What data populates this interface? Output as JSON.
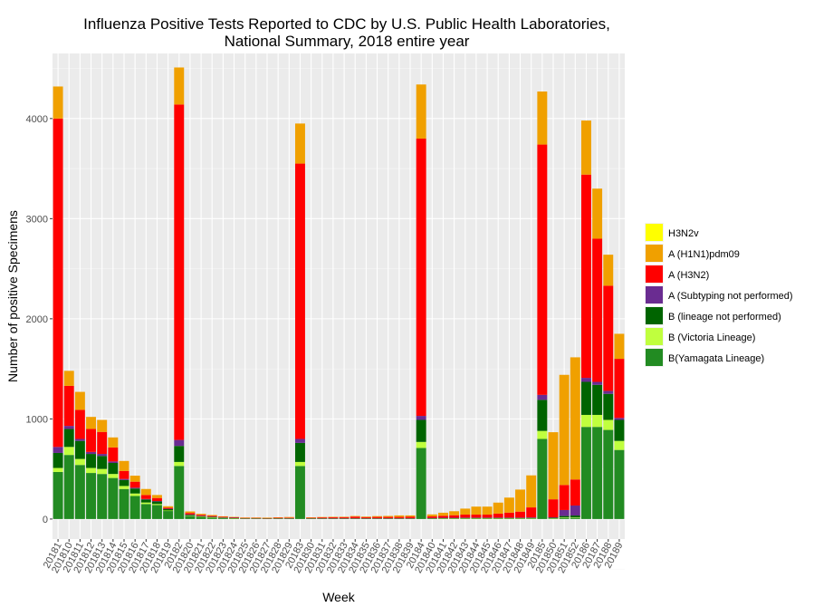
{
  "chart_data": {
    "type": "bar",
    "stacked": true,
    "title": "Influenza Positive Tests Reported to CDC by U.S. Public Health Laboratories,",
    "subtitle": "National Summary, 2018 entire year",
    "xlabel": "Week",
    "ylabel": "Number of positive Specimens",
    "ylim": [
      -200,
      4650
    ],
    "yticks": [
      0,
      1000,
      2000,
      3000,
      4000
    ],
    "grid": true,
    "legend_position": "right",
    "categories": [
      "20181",
      "201810",
      "201811",
      "201812",
      "201813",
      "201814",
      "201815",
      "201816",
      "201817",
      "201818",
      "201819",
      "20182",
      "201820",
      "201821",
      "201822",
      "201823",
      "201824",
      "201825",
      "201826",
      "201827",
      "201828",
      "201829",
      "20183",
      "201830",
      "201831",
      "201832",
      "201833",
      "201834",
      "201835",
      "201836",
      "201837",
      "201838",
      "201839",
      "20184",
      "201840",
      "201841",
      "201842",
      "201843",
      "201844",
      "201845",
      "201846",
      "201847",
      "201848",
      "201849",
      "20185",
      "201850",
      "201851",
      "201852",
      "20186",
      "20187",
      "20188",
      "20189"
    ],
    "series": [
      {
        "name": "B(Yamagata Lineage)",
        "color": "#228B22",
        "values": [
          470,
          640,
          540,
          460,
          450,
          410,
          300,
          230,
          150,
          140,
          80,
          530,
          30,
          20,
          15,
          10,
          8,
          5,
          5,
          4,
          5,
          5,
          530,
          5,
          5,
          5,
          5,
          5,
          5,
          5,
          5,
          5,
          5,
          710,
          5,
          5,
          5,
          5,
          5,
          5,
          5,
          5,
          5,
          5,
          800,
          5,
          10,
          10,
          920,
          920,
          890,
          690
        ]
      },
      {
        "name": "B (Victoria Lineage)",
        "color": "#C0FF3E",
        "values": [
          40,
          80,
          60,
          50,
          50,
          40,
          30,
          25,
          15,
          10,
          5,
          40,
          3,
          2,
          2,
          2,
          1,
          1,
          1,
          1,
          1,
          1,
          40,
          1,
          1,
          1,
          1,
          1,
          1,
          1,
          1,
          1,
          1,
          60,
          1,
          1,
          1,
          1,
          1,
          1,
          1,
          1,
          1,
          1,
          80,
          2,
          5,
          5,
          120,
          120,
          100,
          90
        ]
      },
      {
        "name": "B (lineage not performed)",
        "color": "#006400",
        "values": [
          150,
          180,
          180,
          140,
          130,
          110,
          60,
          50,
          30,
          25,
          15,
          160,
          10,
          8,
          5,
          4,
          3,
          2,
          2,
          2,
          2,
          2,
          190,
          2,
          2,
          2,
          2,
          2,
          2,
          2,
          2,
          2,
          2,
          220,
          3,
          5,
          5,
          5,
          5,
          5,
          5,
          5,
          5,
          5,
          310,
          5,
          15,
          20,
          330,
          300,
          260,
          210
        ]
      },
      {
        "name": "A (Subtyping not performed)",
        "color": "#6A2C91",
        "values": [
          60,
          30,
          20,
          20,
          20,
          15,
          10,
          8,
          5,
          5,
          3,
          60,
          3,
          2,
          2,
          1,
          1,
          1,
          1,
          1,
          1,
          1,
          40,
          1,
          1,
          1,
          1,
          1,
          1,
          1,
          1,
          1,
          1,
          40,
          2,
          2,
          2,
          3,
          3,
          3,
          3,
          3,
          3,
          5,
          50,
          5,
          60,
          100,
          40,
          30,
          30,
          20
        ]
      },
      {
        "name": "A (H3N2)",
        "color": "#FF0000",
        "values": [
          3280,
          400,
          290,
          230,
          220,
          140,
          80,
          60,
          40,
          30,
          10,
          3350,
          15,
          10,
          8,
          5,
          4,
          3,
          3,
          3,
          4,
          5,
          2750,
          5,
          8,
          10,
          10,
          15,
          10,
          12,
          12,
          12,
          15,
          2770,
          15,
          20,
          25,
          30,
          30,
          30,
          40,
          50,
          60,
          100,
          2500,
          180,
          250,
          260,
          2030,
          1430,
          1050,
          590
        ]
      },
      {
        "name": "A (H1N1)pdm09",
        "color": "#F0A000",
        "values": [
          320,
          150,
          180,
          120,
          120,
          100,
          100,
          60,
          60,
          30,
          15,
          370,
          15,
          10,
          8,
          5,
          4,
          3,
          3,
          3,
          4,
          6,
          400,
          3,
          3,
          3,
          4,
          6,
          6,
          8,
          10,
          15,
          12,
          540,
          20,
          30,
          40,
          60,
          80,
          80,
          110,
          150,
          220,
          320,
          530,
          670,
          1100,
          1220,
          540,
          500,
          310,
          250
        ]
      },
      {
        "name": "H3N2v",
        "color": "#FFFF00",
        "values": [
          0,
          0,
          0,
          0,
          0,
          0,
          0,
          0,
          0,
          0,
          0,
          0,
          0,
          0,
          0,
          0,
          0,
          0,
          0,
          0,
          0,
          0,
          0,
          0,
          0,
          0,
          0,
          0,
          0,
          0,
          0,
          0,
          0,
          0,
          0,
          0,
          0,
          0,
          0,
          0,
          0,
          0,
          0,
          0,
          0,
          0,
          0,
          0,
          0,
          0,
          0,
          0
        ]
      }
    ],
    "legend_order": [
      "H3N2v",
      "A (H1N1)pdm09",
      "A (H3N2)",
      "A (Subtyping not performed)",
      "B (lineage not performed)",
      "B (Victoria Lineage)",
      "B(Yamagata Lineage)"
    ]
  }
}
